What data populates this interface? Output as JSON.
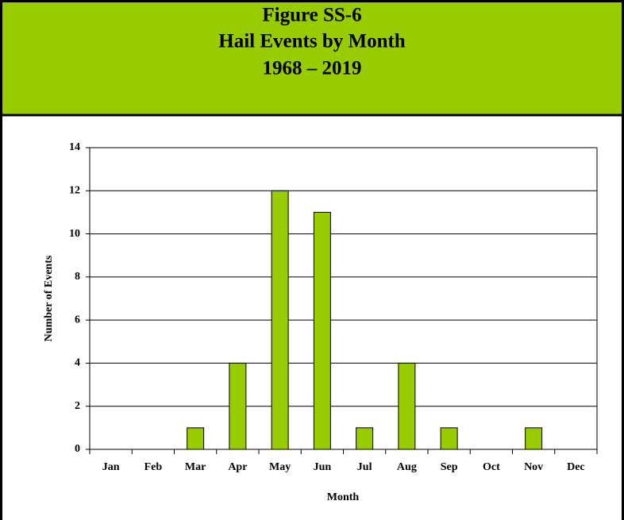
{
  "chart_data": {
    "type": "bar",
    "title": [
      "Figure SS-6",
      "Hail Events by Month",
      "1968 – 2019"
    ],
    "y_label": "Number of Events",
    "x_label": "Month",
    "categories": [
      "Jan",
      "Feb",
      "Mar",
      "Apr",
      "May",
      "Jun",
      "Jul",
      "Aug",
      "Sep",
      "Oct",
      "Nov",
      "Dec"
    ],
    "values": [
      0,
      0,
      1,
      4,
      12,
      11,
      1,
      4,
      1,
      0,
      1,
      0
    ],
    "color": "#99cc00",
    "ylim": [
      0,
      14
    ],
    "yticks": [
      0,
      2,
      4,
      6,
      8,
      10,
      12,
      14
    ],
    "grid": true
  }
}
